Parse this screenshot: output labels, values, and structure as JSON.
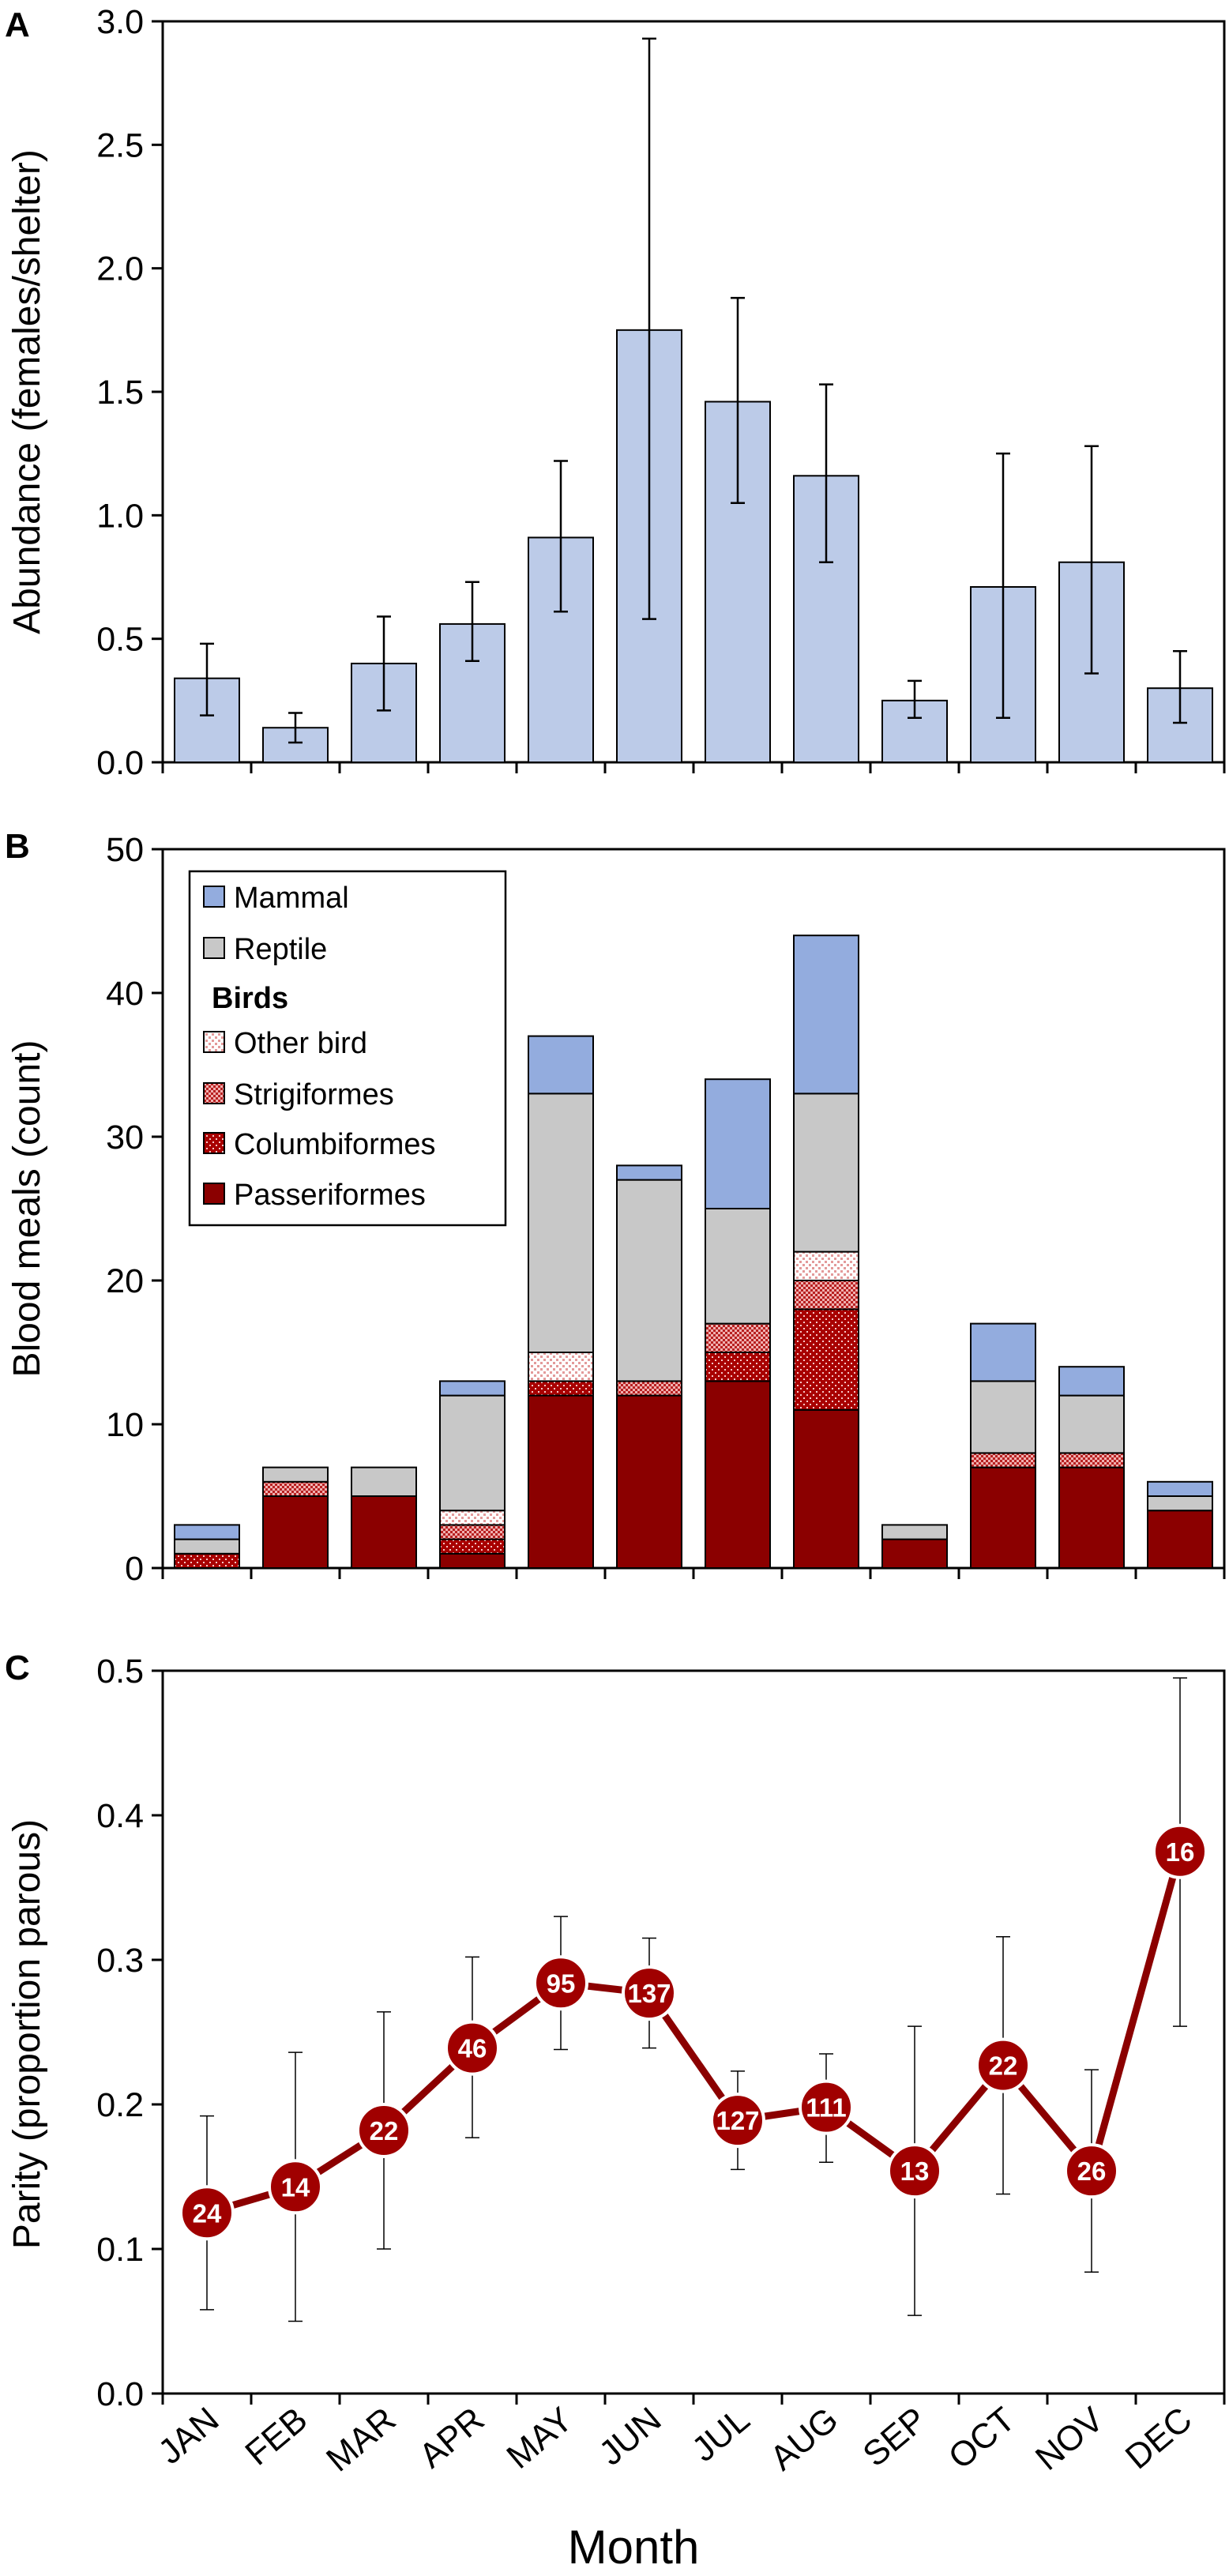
{
  "figure": {
    "xlabel": "Month",
    "months": [
      "JAN",
      "FEB",
      "MAR",
      "APR",
      "MAY",
      "JUN",
      "JUL",
      "AUG",
      "SEP",
      "OCT",
      "NOV",
      "DEC"
    ]
  },
  "colors": {
    "abundance_bar": "#bccbe8",
    "mammal": "#93acde",
    "reptile": "#c8c8c8",
    "passeriformes": "#8b0000",
    "line": "#8b0000",
    "point": "#a00000",
    "other_bird": "#f6d3d3"
  },
  "chart_data": [
    {
      "panel": "A",
      "type": "bar",
      "ylabel": "Abundance (females/shelter)",
      "ylim": [
        0,
        3.0
      ],
      "yticks": [
        "0.0",
        "0.5",
        "1.0",
        "1.5",
        "2.0",
        "2.5",
        "3.0"
      ],
      "categories": [
        "JAN",
        "FEB",
        "MAR",
        "APR",
        "MAY",
        "JUN",
        "JUL",
        "AUG",
        "SEP",
        "OCT",
        "NOV",
        "DEC"
      ],
      "values": [
        0.34,
        0.14,
        0.4,
        0.56,
        0.91,
        1.75,
        1.46,
        1.16,
        0.25,
        0.71,
        0.81,
        0.3
      ],
      "err_low": [
        0.19,
        0.08,
        0.21,
        0.41,
        0.61,
        0.58,
        1.05,
        0.81,
        0.18,
        0.18,
        0.36,
        0.16
      ],
      "err_high": [
        0.48,
        0.2,
        0.59,
        0.73,
        1.22,
        2.93,
        1.88,
        1.53,
        0.33,
        1.25,
        1.28,
        0.45
      ]
    },
    {
      "panel": "B",
      "type": "bar",
      "stacked": true,
      "ylabel": "Blood meals (count)",
      "ylim": [
        0,
        50
      ],
      "yticks": [
        "0",
        "10",
        "20",
        "30",
        "40",
        "50"
      ],
      "categories": [
        "JAN",
        "FEB",
        "MAR",
        "APR",
        "MAY",
        "JUN",
        "JUL",
        "AUG",
        "SEP",
        "OCT",
        "NOV",
        "DEC"
      ],
      "legend_position": "top-left",
      "legend_group_title": "Birds",
      "series": [
        {
          "name": "Passeriformes",
          "values": [
            0,
            5,
            5,
            1,
            12,
            12,
            13,
            11,
            2,
            7,
            7,
            4
          ]
        },
        {
          "name": "Columbiformes",
          "values": [
            1,
            0,
            0,
            1,
            1,
            0,
            2,
            7,
            0,
            0,
            0,
            0
          ]
        },
        {
          "name": "Strigiformes",
          "values": [
            0,
            1,
            0,
            1,
            0,
            1,
            2,
            2,
            0,
            1,
            1,
            0
          ]
        },
        {
          "name": "Other bird",
          "values": [
            0,
            0,
            0,
            1,
            2,
            0,
            0,
            2,
            0,
            0,
            0,
            0
          ]
        },
        {
          "name": "Reptile",
          "values": [
            1,
            1,
            2,
            8,
            18,
            14,
            8,
            11,
            1,
            5,
            4,
            1
          ]
        },
        {
          "name": "Mammal",
          "values": [
            1,
            0,
            0,
            1,
            4,
            1,
            9,
            11,
            0,
            4,
            2,
            1
          ]
        }
      ]
    },
    {
      "panel": "C",
      "type": "line",
      "ylabel": "Parity (proportion parous)",
      "ylim": [
        0,
        0.5
      ],
      "yticks": [
        "0.0",
        "0.1",
        "0.2",
        "0.3",
        "0.4",
        "0.5"
      ],
      "categories": [
        "JAN",
        "FEB",
        "MAR",
        "APR",
        "MAY",
        "JUN",
        "JUL",
        "AUG",
        "SEP",
        "OCT",
        "NOV",
        "DEC"
      ],
      "values": [
        0.125,
        0.143,
        0.182,
        0.239,
        0.284,
        0.277,
        0.189,
        0.198,
        0.154,
        0.227,
        0.154,
        0.375
      ],
      "err_low": [
        0.058,
        0.05,
        0.1,
        0.177,
        0.238,
        0.239,
        0.155,
        0.16,
        0.054,
        0.138,
        0.084,
        0.254
      ],
      "err_high": [
        0.192,
        0.236,
        0.264,
        0.302,
        0.33,
        0.315,
        0.223,
        0.235,
        0.254,
        0.316,
        0.224,
        0.495
      ],
      "labels": [
        "24",
        "14",
        "22",
        "46",
        "95",
        "137",
        "127",
        "111",
        "13",
        "22",
        "26",
        "16"
      ]
    }
  ]
}
